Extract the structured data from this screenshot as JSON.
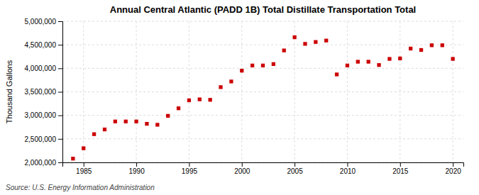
{
  "chart_data": {
    "type": "scatter",
    "title": "Annual Central Atlantic (PADD 1B) Total Distillate Transportation Total",
    "y_label": "Thousand Gallons",
    "source": "Source: U.S. Energy Information Administration",
    "color": "#cc0000",
    "marker": "square",
    "grid": true,
    "x": [
      1984,
      1985,
      1986,
      1987,
      1988,
      1989,
      1990,
      1991,
      1992,
      1993,
      1994,
      1995,
      1996,
      1997,
      1998,
      1999,
      2000,
      2001,
      2002,
      2003,
      2004,
      2005,
      2006,
      2007,
      2008,
      2009,
      2010,
      2011,
      2012,
      2013,
      2014,
      2015,
      2016,
      2017,
      2018,
      2019,
      2020
    ],
    "values": [
      2080000,
      2300000,
      2600000,
      2700000,
      2870000,
      2870000,
      2870000,
      2820000,
      2800000,
      2990000,
      3150000,
      3320000,
      3340000,
      3330000,
      3600000,
      3720000,
      3950000,
      4060000,
      4060000,
      4090000,
      4380000,
      4660000,
      4520000,
      4560000,
      4590000,
      3870000,
      4060000,
      4140000,
      4140000,
      4070000,
      4200000,
      4210000,
      4420000,
      4390000,
      4490000,
      4490000,
      4200000
    ],
    "xlim": [
      1983,
      2021
    ],
    "xticks": [
      1985,
      1990,
      1995,
      2000,
      2005,
      2010,
      2015,
      2020
    ],
    "ylim": [
      2000000,
      5000000
    ],
    "yticks": [
      {
        "value": 2000000,
        "label": "2,000,000"
      },
      {
        "value": 2500000,
        "label": "2,500,000"
      },
      {
        "value": 3000000,
        "label": "3,000,000"
      },
      {
        "value": 3500000,
        "label": "3,500,000"
      },
      {
        "value": 4000000,
        "label": "4,000,000"
      },
      {
        "value": 4500000,
        "label": "4,500,000"
      },
      {
        "value": 5000000,
        "label": "5,000,000"
      }
    ]
  }
}
